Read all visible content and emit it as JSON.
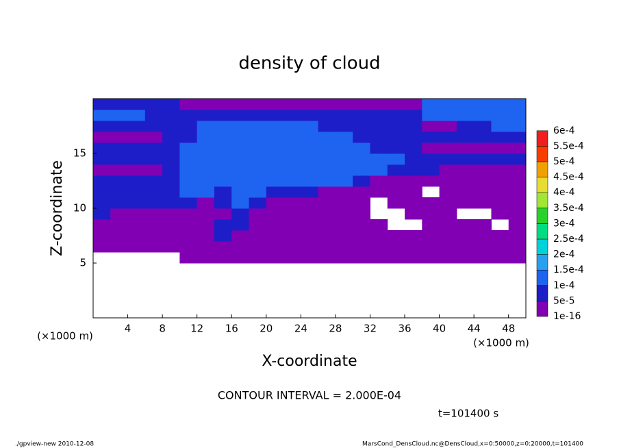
{
  "chart_data": {
    "type": "heatmap",
    "title": "density of cloud",
    "xlabel": "X-coordinate",
    "ylabel": "Z-coordinate",
    "x_unit": "(×1000 m)",
    "note": "CONTOUR INTERVAL = 2.000E-04",
    "time": "t=101400 s",
    "footer_left": "./gpview-new  2010-12-08",
    "footer_right": "MarsCond_DensCloud.nc@DensCloud,x=0:50000,z=0:20000,t=101400",
    "xlim": [
      0,
      50
    ],
    "ylim": [
      0,
      20
    ],
    "xticks": [
      4,
      8,
      12,
      16,
      20,
      24,
      28,
      32,
      36,
      40,
      44,
      48
    ],
    "yticks": [
      5,
      10,
      15
    ],
    "x": [
      1,
      3,
      5,
      7,
      9,
      11,
      13,
      15,
      17,
      19,
      21,
      23,
      25,
      27,
      29,
      31,
      33,
      35,
      37,
      39,
      41,
      43,
      45,
      47,
      49
    ],
    "y": [
      0.5,
      1.5,
      2.5,
      3.5,
      4.5,
      5.5,
      6.5,
      7.5,
      8.5,
      9.5,
      10.5,
      11.5,
      12.5,
      13.5,
      14.5,
      15.5,
      16.5,
      17.5,
      18.5,
      19.5
    ],
    "z": [
      [
        null,
        null,
        null,
        null,
        null,
        null,
        null,
        null,
        null,
        null,
        null,
        null,
        null,
        null,
        null,
        null,
        null,
        null,
        null,
        null,
        null,
        null,
        null,
        null,
        null
      ],
      [
        null,
        null,
        null,
        null,
        null,
        null,
        null,
        null,
        null,
        null,
        null,
        null,
        null,
        null,
        null,
        null,
        null,
        null,
        null,
        null,
        null,
        null,
        null,
        null,
        null
      ],
      [
        null,
        null,
        null,
        null,
        null,
        null,
        null,
        null,
        null,
        null,
        null,
        null,
        null,
        null,
        null,
        null,
        null,
        null,
        null,
        null,
        null,
        null,
        null,
        null,
        null
      ],
      [
        null,
        null,
        null,
        null,
        null,
        null,
        null,
        null,
        null,
        null,
        null,
        null,
        null,
        null,
        null,
        null,
        null,
        null,
        null,
        null,
        null,
        null,
        null,
        null,
        null
      ],
      [
        null,
        null,
        null,
        null,
        null,
        null,
        null,
        null,
        null,
        null,
        null,
        null,
        null,
        null,
        null,
        null,
        null,
        null,
        null,
        null,
        null,
        null,
        null,
        null,
        null
      ],
      [
        null,
        null,
        null,
        null,
        null,
        2e-05,
        2e-05,
        2e-05,
        2e-05,
        2e-05,
        2e-05,
        2e-05,
        2e-05,
        2e-05,
        2e-05,
        2e-05,
        2e-05,
        2e-05,
        2e-05,
        2e-05,
        2e-05,
        2e-05,
        2e-05,
        2e-05,
        2e-05
      ],
      [
        2e-05,
        2e-05,
        2e-05,
        2e-05,
        2e-05,
        2e-05,
        2e-05,
        2e-05,
        2e-05,
        2e-05,
        2e-05,
        2e-05,
        2e-05,
        2e-05,
        2e-05,
        2e-05,
        2e-05,
        2e-05,
        2e-05,
        2e-05,
        2e-05,
        2e-05,
        2e-05,
        2e-05,
        2e-05
      ],
      [
        2e-05,
        2e-05,
        2e-05,
        2e-05,
        2e-05,
        2e-05,
        2e-05,
        7e-05,
        2e-05,
        2e-05,
        2e-05,
        2e-05,
        2e-05,
        2e-05,
        2e-05,
        2e-05,
        2e-05,
        2e-05,
        2e-05,
        2e-05,
        2e-05,
        2e-05,
        2e-05,
        2e-05,
        2e-05
      ],
      [
        2e-05,
        2e-05,
        2e-05,
        2e-05,
        2e-05,
        2e-05,
        2e-05,
        7e-05,
        7e-05,
        2e-05,
        2e-05,
        2e-05,
        2e-05,
        2e-05,
        2e-05,
        2e-05,
        2e-05,
        null,
        null,
        2e-05,
        2e-05,
        2e-05,
        2e-05,
        null,
        2e-05
      ],
      [
        7e-05,
        2e-05,
        2e-05,
        2e-05,
        2e-05,
        2e-05,
        2e-05,
        2e-05,
        7e-05,
        2e-05,
        2e-05,
        2e-05,
        2e-05,
        2e-05,
        2e-05,
        2e-05,
        null,
        null,
        2e-05,
        2e-05,
        2e-05,
        null,
        null,
        2e-05,
        2e-05
      ],
      [
        7e-05,
        7e-05,
        7e-05,
        7e-05,
        7e-05,
        7e-05,
        2e-05,
        7e-05,
        0.00012,
        7e-05,
        2e-05,
        2e-05,
        2e-05,
        2e-05,
        2e-05,
        2e-05,
        null,
        2e-05,
        2e-05,
        2e-05,
        2e-05,
        2e-05,
        2e-05,
        2e-05,
        2e-05
      ],
      [
        7e-05,
        7e-05,
        7e-05,
        7e-05,
        7e-05,
        0.00012,
        0.00012,
        7e-05,
        0.00012,
        0.00012,
        7e-05,
        7e-05,
        7e-05,
        2e-05,
        2e-05,
        2e-05,
        2e-05,
        2e-05,
        2e-05,
        null,
        2e-05,
        2e-05,
        2e-05,
        2e-05,
        2e-05
      ],
      [
        7e-05,
        7e-05,
        7e-05,
        7e-05,
        7e-05,
        0.00012,
        0.00012,
        0.00012,
        0.00012,
        0.00012,
        0.00012,
        0.00012,
        0.00012,
        0.00012,
        0.00012,
        7e-05,
        2e-05,
        2e-05,
        2e-05,
        2e-05,
        2e-05,
        2e-05,
        2e-05,
        2e-05,
        2e-05
      ],
      [
        2e-05,
        2e-05,
        2e-05,
        2e-05,
        7e-05,
        0.00012,
        0.00012,
        0.00012,
        0.00012,
        0.00012,
        0.00012,
        0.00012,
        0.00012,
        0.00012,
        0.00012,
        0.00012,
        0.00012,
        7e-05,
        7e-05,
        7e-05,
        2e-05,
        2e-05,
        2e-05,
        2e-05,
        2e-05
      ],
      [
        7e-05,
        7e-05,
        7e-05,
        7e-05,
        7e-05,
        0.00012,
        0.00012,
        0.00012,
        0.00012,
        0.00012,
        0.00012,
        0.00012,
        0.00012,
        0.00012,
        0.00012,
        0.00012,
        0.00012,
        0.00012,
        7e-05,
        7e-05,
        7e-05,
        7e-05,
        7e-05,
        7e-05,
        7e-05
      ],
      [
        7e-05,
        7e-05,
        7e-05,
        7e-05,
        7e-05,
        0.00012,
        0.00012,
        0.00012,
        0.00012,
        0.00012,
        0.00012,
        0.00012,
        0.00012,
        0.00012,
        0.00012,
        0.00012,
        7e-05,
        7e-05,
        7e-05,
        2e-05,
        2e-05,
        2e-05,
        2e-05,
        2e-05,
        2e-05
      ],
      [
        2e-05,
        2e-05,
        2e-05,
        2e-05,
        7e-05,
        7e-05,
        0.00012,
        0.00012,
        0.00012,
        0.00012,
        0.00012,
        0.00012,
        0.00012,
        0.00012,
        0.00012,
        7e-05,
        7e-05,
        7e-05,
        7e-05,
        7e-05,
        7e-05,
        7e-05,
        7e-05,
        7e-05,
        7e-05
      ],
      [
        7e-05,
        7e-05,
        7e-05,
        7e-05,
        7e-05,
        7e-05,
        0.00012,
        0.00012,
        0.00012,
        0.00012,
        0.00012,
        0.00012,
        0.00012,
        7e-05,
        7e-05,
        7e-05,
        7e-05,
        7e-05,
        7e-05,
        2e-05,
        2e-05,
        7e-05,
        7e-05,
        0.00012,
        0.00012
      ],
      [
        0.00012,
        0.00012,
        0.00012,
        7e-05,
        7e-05,
        7e-05,
        7e-05,
        7e-05,
        7e-05,
        7e-05,
        7e-05,
        7e-05,
        7e-05,
        7e-05,
        7e-05,
        7e-05,
        7e-05,
        7e-05,
        7e-05,
        0.00012,
        0.00012,
        0.00012,
        0.00012,
        0.00012,
        0.00012
      ],
      [
        7e-05,
        7e-05,
        7e-05,
        7e-05,
        7e-05,
        2e-05,
        2e-05,
        2e-05,
        2e-05,
        2e-05,
        2e-05,
        2e-05,
        2e-05,
        2e-05,
        2e-05,
        2e-05,
        2e-05,
        2e-05,
        2e-05,
        0.00012,
        0.00012,
        0.00012,
        0.00012,
        0.00012,
        0.00012
      ]
    ],
    "colorbar": {
      "levels": [
        1e-16,
        {
          "value": 5e-05,
          "label": "5e-5"
        },
        {
          "value": 0.0001,
          "label": "1e-4"
        },
        {
          "value": 0.00015,
          "label": "1.5e-4"
        },
        {
          "value": 0.0002,
          "label": "2e-4"
        },
        {
          "value": 0.00025,
          "label": "2.5e-4"
        },
        {
          "value": 0.0003,
          "label": "3e-4"
        },
        {
          "value": 0.00035,
          "label": "3.5e-4"
        },
        {
          "value": 0.0004,
          "label": "4e-4"
        },
        {
          "value": 0.00045,
          "label": "4.5e-4"
        },
        {
          "value": 0.0005,
          "label": "5e-4"
        },
        {
          "value": 0.00055,
          "label": "5.5e-4"
        },
        {
          "value": 0.0006,
          "label": "6e-4"
        }
      ],
      "colors": [
        "#8200b4",
        "#1e1ec8",
        "#1e64f0",
        "#28a0f0",
        "#00d2dc",
        "#00dc82",
        "#28d228",
        "#a0e632",
        "#e6dc32",
        "#f0a000",
        "#fa3c00",
        "#f01e1e",
        "#f08282"
      ]
    }
  }
}
